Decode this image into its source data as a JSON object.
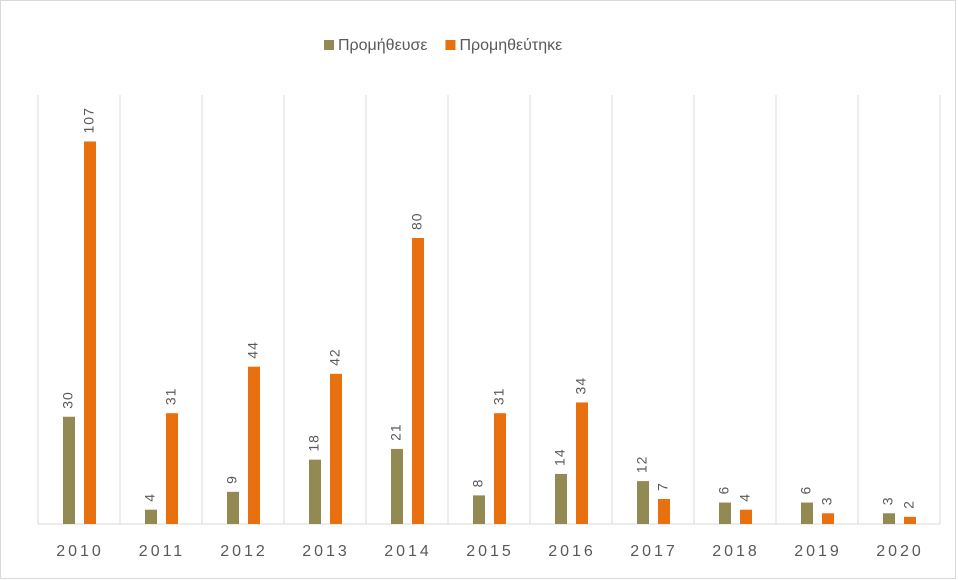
{
  "chart_data": {
    "type": "bar",
    "categories": [
      "2010",
      "2011",
      "2012",
      "2013",
      "2014",
      "2015",
      "2016",
      "2017",
      "2018",
      "2019",
      "2020"
    ],
    "series": [
      {
        "name": "Προμήθευσε",
        "color": "#938953",
        "values": [
          30,
          4,
          9,
          18,
          21,
          8,
          14,
          12,
          6,
          6,
          3
        ]
      },
      {
        "name": "Προμηθεύτηκε",
        "color": "#e8700e",
        "values": [
          107,
          31,
          44,
          42,
          80,
          31,
          34,
          7,
          4,
          3,
          2
        ]
      }
    ],
    "ylim": [
      0,
      120
    ],
    "legend": "top"
  }
}
